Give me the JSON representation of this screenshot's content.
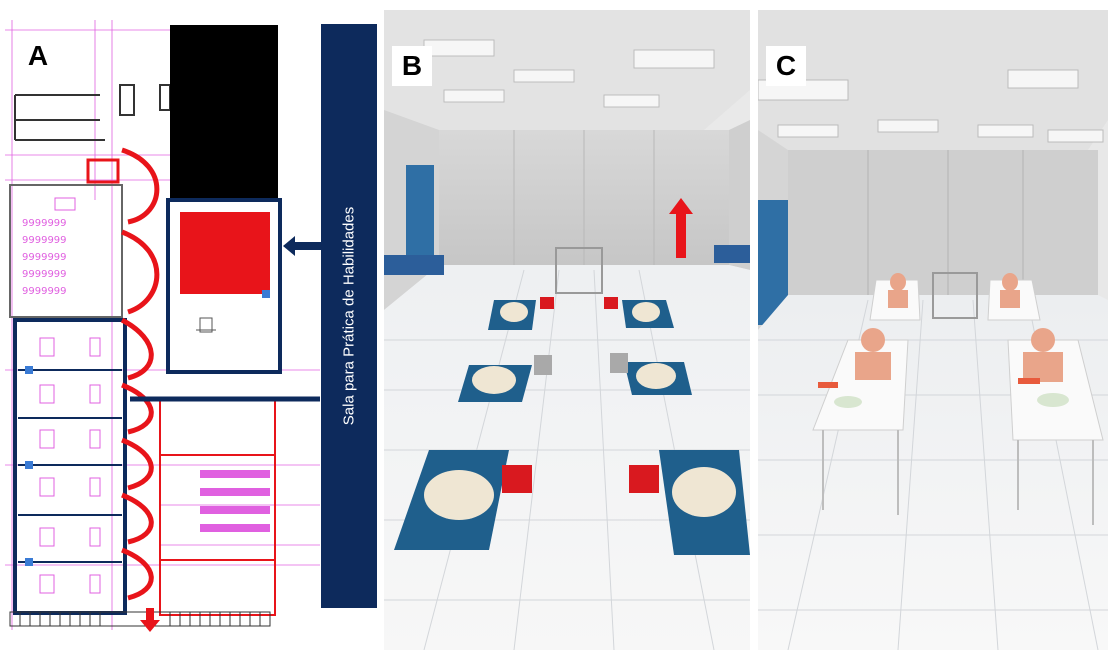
{
  "panels": [
    {
      "label": "A"
    },
    {
      "label": "B"
    },
    {
      "label": "C"
    }
  ],
  "banner": {
    "text": "Sala para Prática de Habilidades"
  },
  "colors": {
    "navy": "#0d2a5c",
    "red": "#e8141a",
    "magenta": "#e060e0"
  },
  "icons": [
    "arrow-left-icon",
    "arrow-up-icon",
    "arrow-down-icon"
  ]
}
